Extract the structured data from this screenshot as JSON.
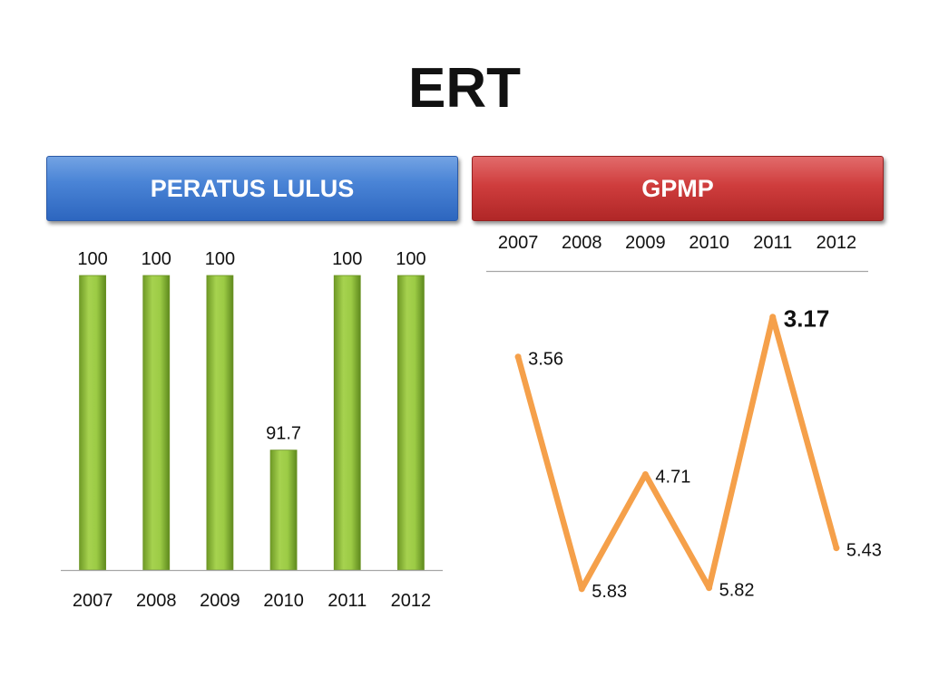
{
  "title": "ERT",
  "panels": {
    "left_header": "PERATUS LULUS",
    "right_header": "GPMP"
  },
  "colors": {
    "bar": "#8fbf3a",
    "line": "#f5a04a",
    "left_header": "#3c77cf",
    "right_header": "#cc3a3a"
  },
  "chart_data": [
    {
      "type": "bar",
      "categories": [
        "2007",
        "2008",
        "2009",
        "2010",
        "2011",
        "2012"
      ],
      "values": [
        100,
        100,
        100,
        91.7,
        100,
        100
      ],
      "data_labels": [
        "100",
        "100",
        "100",
        "91.7",
        "100",
        "100"
      ],
      "ylim": [
        86,
        100
      ],
      "grid": false
    },
    {
      "type": "line",
      "categories": [
        "2007",
        "2008",
        "2009",
        "2010",
        "2011",
        "2012"
      ],
      "values": [
        3.56,
        5.83,
        4.71,
        5.82,
        3.17,
        5.43
      ],
      "data_labels": [
        "3.56",
        "5.83",
        "4.71",
        "5.82",
        "3.17",
        "5.43"
      ],
      "highlight": "2011",
      "y_axis": "inverted",
      "ylim": [
        2.8,
        6.0
      ],
      "xaxis_position": "top",
      "grid": false
    }
  ]
}
